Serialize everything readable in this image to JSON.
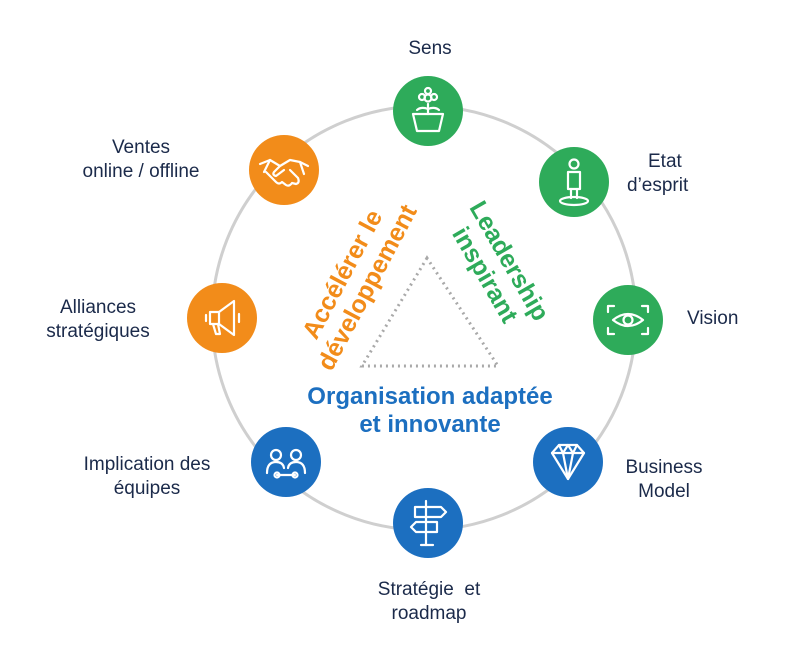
{
  "colors": {
    "ring": "#cfcfcf",
    "green": "#2eab5a",
    "blue": "#1c6fc0",
    "orange": "#f28c1a",
    "label": "#1b2a4a",
    "triangle": "#a9a9a9"
  },
  "themes": {
    "accelerate": [
      "Accélérer le",
      "développement"
    ],
    "leadership": [
      "Leadership",
      "inspirant"
    ],
    "organisation": [
      "Organisation adaptée",
      "et innovante"
    ]
  },
  "nodes": [
    {
      "id": "sens",
      "icon": "plant-pot-icon",
      "color": "green",
      "label": [
        "Sens"
      ]
    },
    {
      "id": "etat",
      "icon": "person-standing-icon",
      "color": "green",
      "label": [
        "Etat",
        "d’esprit"
      ]
    },
    {
      "id": "vision",
      "icon": "eye-focus-icon",
      "color": "green",
      "label": [
        "Vision"
      ]
    },
    {
      "id": "business",
      "icon": "diamond-icon",
      "color": "blue",
      "label": [
        "Business",
        "Model"
      ]
    },
    {
      "id": "strategie",
      "icon": "signpost-icon",
      "color": "blue",
      "label": [
        "Stratégie  et",
        "roadmap"
      ]
    },
    {
      "id": "implication",
      "icon": "team-link-icon",
      "color": "blue",
      "label": [
        "Implication des",
        "équipes"
      ]
    },
    {
      "id": "alliances",
      "icon": "megaphone-icon",
      "color": "orange",
      "label": [
        "Alliances",
        "stratégiques"
      ]
    },
    {
      "id": "ventes",
      "icon": "handshake-icon",
      "color": "orange",
      "label": [
        "Ventes",
        "online / offline"
      ]
    }
  ]
}
